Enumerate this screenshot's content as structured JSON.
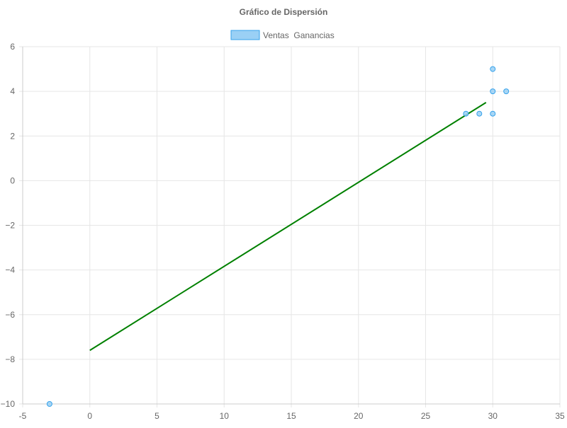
{
  "chart_data": {
    "type": "scatter",
    "title": "Gráfico de Dispersión",
    "xlabel": "",
    "ylabel": "",
    "xlim": [
      -5,
      35
    ],
    "ylim": [
      -10,
      6
    ],
    "x_ticks": [
      -5,
      0,
      5,
      10,
      15,
      20,
      25,
      30,
      35
    ],
    "y_ticks": [
      -10,
      -8,
      -6,
      -4,
      -2,
      0,
      2,
      4,
      6
    ],
    "grid": true,
    "legend_position": "top-center",
    "series": [
      {
        "name": "Ventas  Ganancias",
        "kind": "scatter",
        "color": "#36a2eb",
        "fill": "#9ad0f5",
        "points": [
          {
            "x": -3,
            "y": -10
          },
          {
            "x": 28,
            "y": 3
          },
          {
            "x": 29,
            "y": 3
          },
          {
            "x": 30,
            "y": 3
          },
          {
            "x": 30,
            "y": 4
          },
          {
            "x": 30,
            "y": 5
          },
          {
            "x": 31,
            "y": 4
          }
        ]
      },
      {
        "kind": "line",
        "color": "#008000",
        "points": [
          {
            "x": 0,
            "y": -7.6
          },
          {
            "x": 29.5,
            "y": 3.5
          }
        ]
      }
    ]
  }
}
